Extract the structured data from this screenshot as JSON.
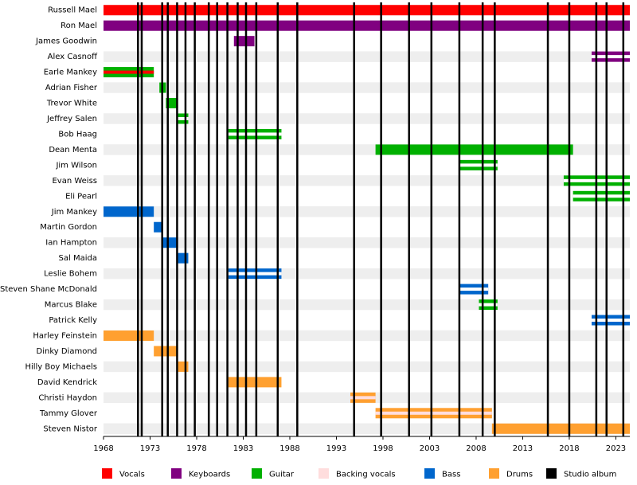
{
  "chart_data": {
    "type": "timeline",
    "xlim": [
      1968,
      2024.5
    ],
    "xticks": [
      1968,
      1973,
      1978,
      1983,
      1988,
      1993,
      1998,
      2003,
      2008,
      2013,
      2018,
      2023
    ],
    "members": [
      {
        "name": "Russell Mael",
        "start": 1968,
        "end": 2024.5,
        "color": "#ff0000"
      },
      {
        "name": "Ron Mael",
        "start": 1968,
        "end": 2024.5,
        "color": "#800080"
      },
      {
        "name": "James Goodwin",
        "start": 1982.0,
        "end": 1984.2,
        "color": "#800080"
      },
      {
        "name": "Alex Casnoff",
        "start": 2020.4,
        "end": 2024.5,
        "color": "#800080",
        "stripe": "#ffffff"
      },
      {
        "name": "Earle Mankey",
        "start": 1968,
        "end": 1973.4,
        "color": "#00b000",
        "stripe": "#ff0000"
      },
      {
        "name": "Adrian Fisher",
        "start": 1974.0,
        "end": 1974.7,
        "color": "#00b000"
      },
      {
        "name": "Trevor White",
        "start": 1974.7,
        "end": 1976.0,
        "color": "#00b000"
      },
      {
        "name": "Jeffrey Salen",
        "start": 1976.0,
        "end": 1977.1,
        "color": "#00b000",
        "stripe": "#ffffff"
      },
      {
        "name": "Bob Haag",
        "start": 1981.4,
        "end": 1987.1,
        "color": "#00b000",
        "stripe": "#ffffff"
      },
      {
        "name": "Dean Menta",
        "start": 1997.2,
        "end": 2018.4,
        "color": "#00b000"
      },
      {
        "name": "Jim Wilson",
        "start": 2006.2,
        "end": 2010.3,
        "color": "#00b000",
        "stripe": "#ffffff"
      },
      {
        "name": "Evan Weiss",
        "start": 2017.4,
        "end": 2024.5,
        "color": "#00b000",
        "stripe": "#ffffff"
      },
      {
        "name": "Eli Pearl",
        "start": 2018.4,
        "end": 2024.5,
        "color": "#00b000",
        "stripe": "#ffffff"
      },
      {
        "name": "Jim Mankey",
        "start": 1968,
        "end": 1973.4,
        "color": "#0066cc"
      },
      {
        "name": "Martin Gordon",
        "start": 1973.4,
        "end": 1974.3,
        "color": "#0066cc"
      },
      {
        "name": "Ian Hampton",
        "start": 1974.3,
        "end": 1976.0,
        "color": "#0066cc"
      },
      {
        "name": "Sal Maida",
        "start": 1976.0,
        "end": 1977.1,
        "color": "#0066cc"
      },
      {
        "name": "Leslie Bohem",
        "start": 1981.4,
        "end": 1987.1,
        "color": "#0066cc",
        "stripe": "#ffffff"
      },
      {
        "name": "Steven Shane McDonald",
        "start": 2006.2,
        "end": 2009.3,
        "color": "#0066cc",
        "stripe": "#ffffff"
      },
      {
        "name": "Marcus Blake",
        "start": 2008.3,
        "end": 2010.3,
        "color": "#00b000",
        "stripe": "#ffffff"
      },
      {
        "name": "Patrick Kelly",
        "start": 2020.4,
        "end": 2024.5,
        "color": "#0066cc",
        "stripe": "#ffffff"
      },
      {
        "name": "Harley Feinstein",
        "start": 1968,
        "end": 1973.4,
        "color": "#ffa030"
      },
      {
        "name": "Dinky Diamond",
        "start": 1973.4,
        "end": 1976.0,
        "color": "#ffa030"
      },
      {
        "name": "Hilly Boy Michaels",
        "start": 1976.0,
        "end": 1977.1,
        "color": "#ffa030"
      },
      {
        "name": "David Kendrick",
        "start": 1981.4,
        "end": 1987.1,
        "color": "#ffa030"
      },
      {
        "name": "Christi Haydon",
        "start": 1994.5,
        "end": 1997.2,
        "color": "#ffa030",
        "stripe": "#ffdddd"
      },
      {
        "name": "Tammy Glover",
        "start": 1997.2,
        "end": 2009.7,
        "color": "#ffa030",
        "stripe": "#ffdddd"
      },
      {
        "name": "Steven Nistor",
        "start": 2009.7,
        "end": 2024.5,
        "color": "#ffa030"
      }
    ],
    "albums": [
      1971.7,
      1972.1,
      1974.3,
      1974.9,
      1975.9,
      1976.8,
      1977.8,
      1979.3,
      1980.2,
      1981.3,
      1982.4,
      1983.3,
      1984.4,
      1986.7,
      1988.8,
      1994.9,
      1997.8,
      2000.8,
      2003.2,
      2006.2,
      2008.7,
      2010.0,
      2015.7,
      2018.0,
      2020.9,
      2022.0,
      2023.8
    ],
    "album_color": "#000000",
    "legend": [
      {
        "name": "Vocals",
        "color": "#ff0000"
      },
      {
        "name": "Keyboards",
        "color": "#800080"
      },
      {
        "name": "Guitar",
        "color": "#00b000"
      },
      {
        "name": "Backing vocals",
        "color": "#ffdddd"
      },
      {
        "name": "Bass",
        "color": "#0066cc"
      },
      {
        "name": "Drums",
        "color": "#ffa030"
      },
      {
        "name": "Studio album",
        "color": "#000000"
      }
    ]
  }
}
